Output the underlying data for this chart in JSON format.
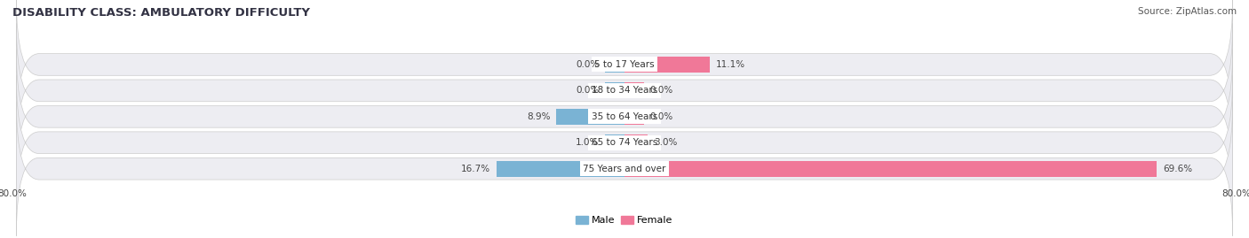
{
  "title": "DISABILITY CLASS: AMBULATORY DIFFICULTY",
  "source": "Source: ZipAtlas.com",
  "categories": [
    "5 to 17 Years",
    "18 to 34 Years",
    "35 to 64 Years",
    "65 to 74 Years",
    "75 Years and over"
  ],
  "male_values": [
    0.0,
    0.0,
    8.9,
    1.0,
    16.7
  ],
  "female_values": [
    11.1,
    0.0,
    0.0,
    3.0,
    69.6
  ],
  "male_color": "#7ab3d4",
  "female_color": "#f07898",
  "row_bg_color": "#ededf2",
  "xlim_left": -80.0,
  "xlim_right": 80.0,
  "title_fontsize": 9.5,
  "source_fontsize": 7.5,
  "label_fontsize": 7.5,
  "category_fontsize": 7.5,
  "bar_height": 0.62,
  "min_bar": 2.5,
  "fig_width": 14.06,
  "fig_height": 2.69,
  "dpi": 100
}
